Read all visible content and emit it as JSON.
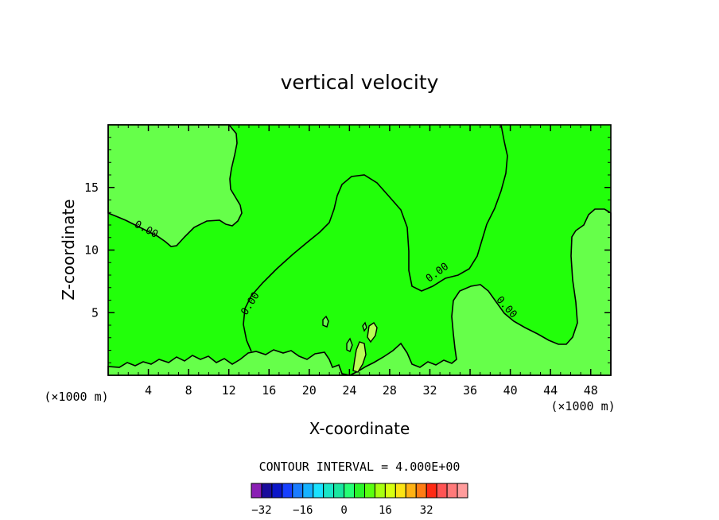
{
  "chart_data": {
    "type": "contour",
    "title": "vertical velocity",
    "xlabel": "X-coordinate",
    "ylabel": "Z-coordinate",
    "x_unit_left": "(×1000 m)",
    "x_unit_right": "(×1000 m)",
    "xlim": [
      0,
      50
    ],
    "ylim": [
      0,
      20
    ],
    "x_ticks": [
      4,
      8,
      12,
      16,
      20,
      24,
      28,
      32,
      36,
      40,
      44,
      48
    ],
    "y_ticks": [
      5,
      10,
      15
    ],
    "contour_interval_text": "CONTOUR INTERVAL = 4.000E+00",
    "contour_label": "0.00",
    "colorbar": {
      "tick_labels": [
        "−32",
        "−16",
        "0",
        "16",
        "32"
      ],
      "tick_values": [
        -32,
        -16,
        0,
        16,
        32
      ],
      "colors": [
        "#8a1fb4",
        "#1a0c9c",
        "#0b16c8",
        "#1740ff",
        "#1a7cff",
        "#15b2ff",
        "#1ae2ff",
        "#19e6c8",
        "#19e6a0",
        "#26ff76",
        "#2af52a",
        "#5aff10",
        "#a8ff10",
        "#d8ff10",
        "#fce414",
        "#ffb214",
        "#ff7c14",
        "#ff2a14",
        "#ff5454",
        "#ff7a7a",
        "#ff9c9c"
      ]
    },
    "regions": {
      "low_value_color": "#66ff4a",
      "high_value_color": "#22ff0a",
      "weak_color": "#b8ff55"
    }
  }
}
